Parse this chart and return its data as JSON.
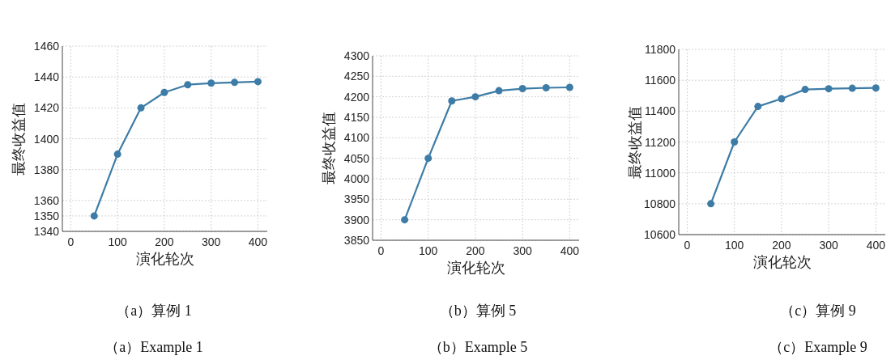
{
  "chart_data": [
    {
      "type": "line",
      "xlabel": "演化轮次",
      "ylabel": "最终收益值",
      "x": [
        50,
        100,
        150,
        200,
        250,
        300,
        350,
        400
      ],
      "series": [
        {
          "color": "#3d7ca6",
          "values": [
            1350,
            1390,
            1420,
            1430,
            1435,
            1436,
            1436.5,
            1437
          ]
        }
      ],
      "xlim": [
        -18,
        420
      ],
      "ylim": [
        1340,
        1460
      ],
      "xticks": [
        0,
        100,
        200,
        300,
        400
      ],
      "yticks": [
        1340,
        1350,
        1360,
        1380,
        1400,
        1420,
        1440,
        1460
      ],
      "grid": true,
      "marker": "circle",
      "line_style": "solid",
      "annotations": [
        "（a）算例 1",
        "（a）Example 1"
      ]
    },
    {
      "type": "line",
      "xlabel": "演化轮次",
      "ylabel": "最终收益值",
      "x": [
        50,
        100,
        150,
        200,
        250,
        300,
        350,
        400
      ],
      "series": [
        {
          "color": "#3d7ca6",
          "values": [
            3900,
            4050,
            4190,
            4200,
            4215,
            4220,
            4222,
            4223
          ]
        }
      ],
      "xlim": [
        -18,
        420
      ],
      "ylim": [
        3850,
        4300
      ],
      "xticks": [
        0,
        100,
        200,
        300,
        400
      ],
      "yticks": [
        3850,
        3900,
        3950,
        4000,
        4050,
        4100,
        4150,
        4200,
        4250,
        4300
      ],
      "grid": true,
      "marker": "circle",
      "line_style": "solid",
      "annotations": [
        "（b）算例 5",
        "（b）Example 5"
      ]
    },
    {
      "type": "line",
      "xlabel": "演化轮次",
      "ylabel": "最终收益值",
      "x": [
        50,
        100,
        150,
        200,
        250,
        300,
        350,
        400
      ],
      "series": [
        {
          "color": "#3d7ca6",
          "values": [
            10800,
            11200,
            11430,
            11480,
            11540,
            11545,
            11548,
            11550
          ]
        }
      ],
      "xlim": [
        -18,
        420
      ],
      "ylim": [
        10600,
        11800
      ],
      "xticks": [
        0,
        100,
        200,
        300,
        400
      ],
      "yticks": [
        10600,
        10800,
        11000,
        11200,
        11400,
        11600,
        11800
      ],
      "grid": true,
      "marker": "circle",
      "line_style": "solid",
      "annotations": [
        "（c）算例 9",
        "（c）Example 9"
      ]
    }
  ]
}
